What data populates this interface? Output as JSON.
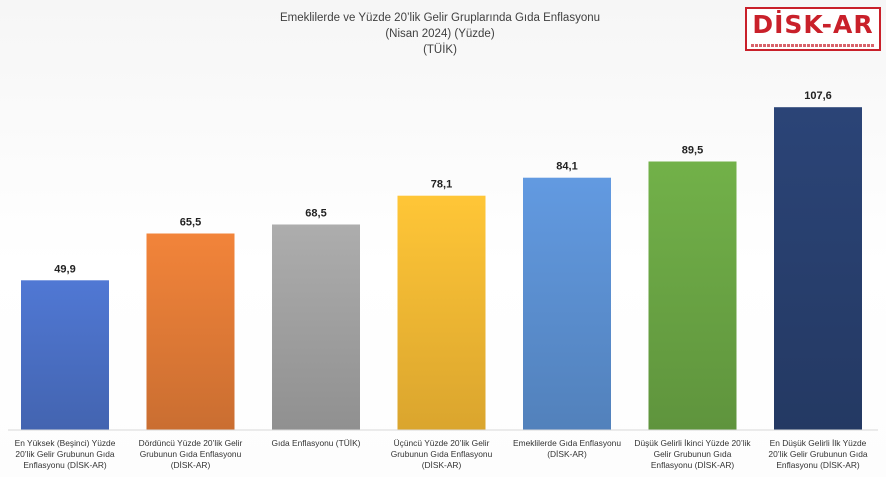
{
  "title": {
    "line1": "Emeklilerde ve Yüzde 20’lik Gelir Gruplarında Gıda Enflasyonu",
    "line2": "(Nisan 2024) (Yüzde)",
    "line3": "(TÜİK)"
  },
  "logo": {
    "text": "DİSK-AR",
    "brand_color": "#c9202a"
  },
  "chart_data": {
    "type": "bar",
    "title": "Emeklilerde ve Yüzde 20’lik Gelir Gruplarında Gıda Enflasyonu (Nisan 2024) (Yüzde) (TÜİK)",
    "categories": [
      "En Yüksek (Beşinci) Yüzde 20’lik Gelir Grubunun Gıda Enflasyonu (DİSK-AR)",
      "Dördüncü Yüzde 20’lik Gelir Grubunun Gıda Enflasyonu (DİSK-AR)",
      "Gıda Enflasyonu (TÜİK)",
      "Üçüncü Yüzde 20’lik Gelir Grubunun Gıda Enflasyonu (DİSK-AR)",
      "Emeklilerde Gıda Enflasyonu (DİSK-AR)",
      "Düşük Gelirli İkinci Yüzde 20’lik Gelir Grubunun Gıda Enflasyonu (DİSK-AR)",
      "En Düşük Gelirli İlk Yüzde 20’lik Gelir Grubunun Gıda Enflasyonu (DİSK-AR)"
    ],
    "values": [
      49.9,
      65.5,
      68.5,
      78.1,
      84.1,
      89.5,
      107.6
    ],
    "value_labels": [
      "49,9",
      "65,5",
      "68,5",
      "78,1",
      "84,1",
      "89,5",
      "107,6"
    ],
    "colors": [
      "#4a6fc4",
      "#e07a36",
      "#a0a0a0",
      "#f2b733",
      "#5b8fd0",
      "#6aa444",
      "#283f6e"
    ],
    "ylim": [
      0,
      125
    ],
    "grid": false,
    "xlabel": "",
    "ylabel": ""
  }
}
